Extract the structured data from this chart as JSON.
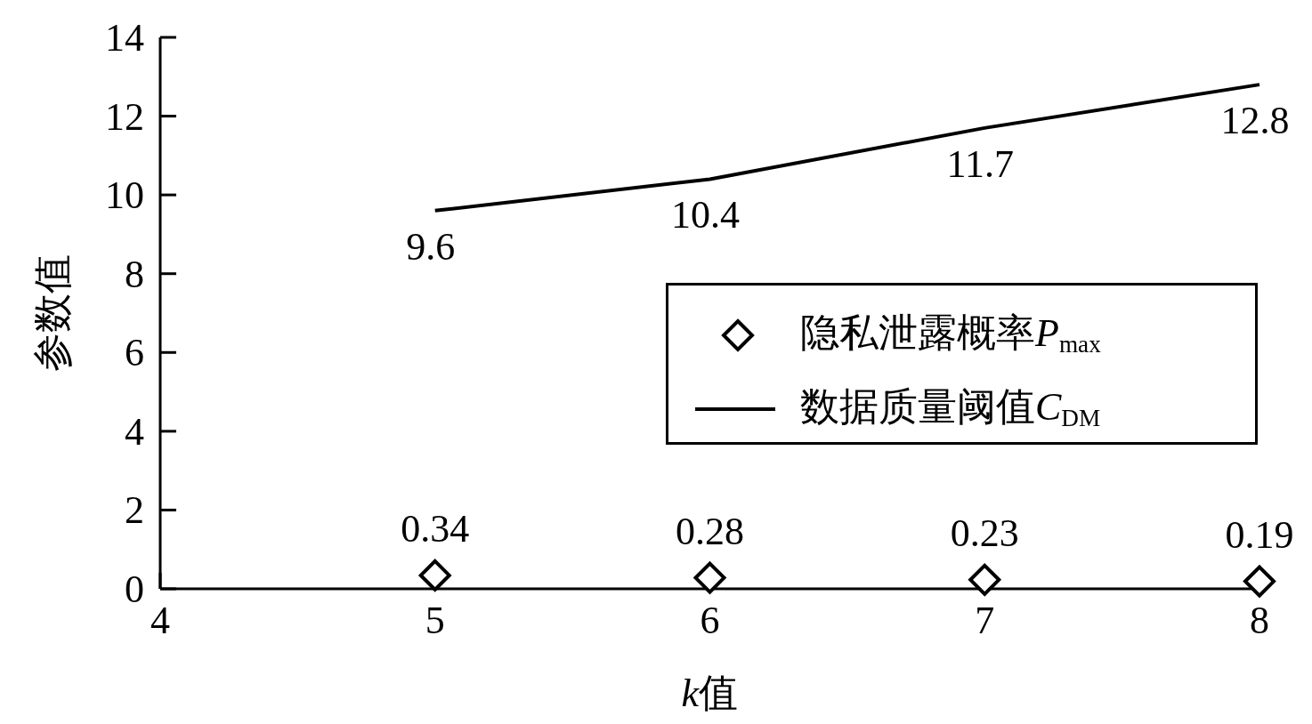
{
  "chart_data": {
    "type": "line",
    "xlabel": "k值",
    "ylabel": "参数值",
    "x": [
      5,
      6,
      7,
      8
    ],
    "xlim": [
      4,
      8
    ],
    "xticks": [
      4,
      5,
      6,
      7,
      8
    ],
    "ylim": [
      0,
      14
    ],
    "yticks": [
      0,
      2,
      4,
      6,
      8,
      10,
      12,
      14
    ],
    "legend": "right",
    "data_labels": true,
    "grid": false,
    "series": [
      {
        "name": "隐私泄露概率P$_{max}$",
        "type": "scatter",
        "marker": "diamond",
        "color": "#000000",
        "values": [
          0.34,
          0.28,
          0.23,
          0.19
        ]
      },
      {
        "name": "数据质量阈值C$_{DM}$",
        "type": "line",
        "line_style": "solid",
        "color": "#000000",
        "values": [
          9.6,
          10.4,
          11.7,
          12.8
        ]
      }
    ]
  }
}
